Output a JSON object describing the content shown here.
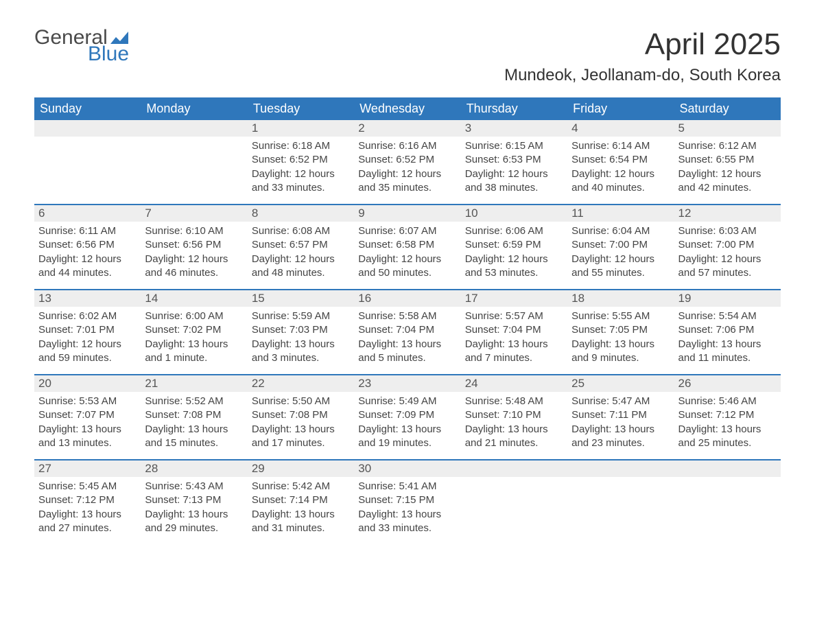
{
  "logo": {
    "word1": "General",
    "word2": "Blue",
    "flag_color": "#2f77bb"
  },
  "title": "April 2025",
  "location": "Mundeok, Jeollanam-do, South Korea",
  "header_bg": "#2f77bb",
  "header_text_color": "#ffffff",
  "daynum_bg": "#eeeeee",
  "week_border_color": "#2f77bb",
  "text_color": "#444444",
  "page_bg": "#ffffff",
  "fonts": {
    "title_size_pt": 33,
    "location_size_pt": 18,
    "dow_size_pt": 14,
    "body_size_pt": 11
  },
  "days_of_week": [
    "Sunday",
    "Monday",
    "Tuesday",
    "Wednesday",
    "Thursday",
    "Friday",
    "Saturday"
  ],
  "weeks": [
    [
      {
        "num": "",
        "sunrise": "",
        "sunset": "",
        "daylight": ""
      },
      {
        "num": "",
        "sunrise": "",
        "sunset": "",
        "daylight": ""
      },
      {
        "num": "1",
        "sunrise": "Sunrise: 6:18 AM",
        "sunset": "Sunset: 6:52 PM",
        "daylight": "Daylight: 12 hours and 33 minutes."
      },
      {
        "num": "2",
        "sunrise": "Sunrise: 6:16 AM",
        "sunset": "Sunset: 6:52 PM",
        "daylight": "Daylight: 12 hours and 35 minutes."
      },
      {
        "num": "3",
        "sunrise": "Sunrise: 6:15 AM",
        "sunset": "Sunset: 6:53 PM",
        "daylight": "Daylight: 12 hours and 38 minutes."
      },
      {
        "num": "4",
        "sunrise": "Sunrise: 6:14 AM",
        "sunset": "Sunset: 6:54 PM",
        "daylight": "Daylight: 12 hours and 40 minutes."
      },
      {
        "num": "5",
        "sunrise": "Sunrise: 6:12 AM",
        "sunset": "Sunset: 6:55 PM",
        "daylight": "Daylight: 12 hours and 42 minutes."
      }
    ],
    [
      {
        "num": "6",
        "sunrise": "Sunrise: 6:11 AM",
        "sunset": "Sunset: 6:56 PM",
        "daylight": "Daylight: 12 hours and 44 minutes."
      },
      {
        "num": "7",
        "sunrise": "Sunrise: 6:10 AM",
        "sunset": "Sunset: 6:56 PM",
        "daylight": "Daylight: 12 hours and 46 minutes."
      },
      {
        "num": "8",
        "sunrise": "Sunrise: 6:08 AM",
        "sunset": "Sunset: 6:57 PM",
        "daylight": "Daylight: 12 hours and 48 minutes."
      },
      {
        "num": "9",
        "sunrise": "Sunrise: 6:07 AM",
        "sunset": "Sunset: 6:58 PM",
        "daylight": "Daylight: 12 hours and 50 minutes."
      },
      {
        "num": "10",
        "sunrise": "Sunrise: 6:06 AM",
        "sunset": "Sunset: 6:59 PM",
        "daylight": "Daylight: 12 hours and 53 minutes."
      },
      {
        "num": "11",
        "sunrise": "Sunrise: 6:04 AM",
        "sunset": "Sunset: 7:00 PM",
        "daylight": "Daylight: 12 hours and 55 minutes."
      },
      {
        "num": "12",
        "sunrise": "Sunrise: 6:03 AM",
        "sunset": "Sunset: 7:00 PM",
        "daylight": "Daylight: 12 hours and 57 minutes."
      }
    ],
    [
      {
        "num": "13",
        "sunrise": "Sunrise: 6:02 AM",
        "sunset": "Sunset: 7:01 PM",
        "daylight": "Daylight: 12 hours and 59 minutes."
      },
      {
        "num": "14",
        "sunrise": "Sunrise: 6:00 AM",
        "sunset": "Sunset: 7:02 PM",
        "daylight": "Daylight: 13 hours and 1 minute."
      },
      {
        "num": "15",
        "sunrise": "Sunrise: 5:59 AM",
        "sunset": "Sunset: 7:03 PM",
        "daylight": "Daylight: 13 hours and 3 minutes."
      },
      {
        "num": "16",
        "sunrise": "Sunrise: 5:58 AM",
        "sunset": "Sunset: 7:04 PM",
        "daylight": "Daylight: 13 hours and 5 minutes."
      },
      {
        "num": "17",
        "sunrise": "Sunrise: 5:57 AM",
        "sunset": "Sunset: 7:04 PM",
        "daylight": "Daylight: 13 hours and 7 minutes."
      },
      {
        "num": "18",
        "sunrise": "Sunrise: 5:55 AM",
        "sunset": "Sunset: 7:05 PM",
        "daylight": "Daylight: 13 hours and 9 minutes."
      },
      {
        "num": "19",
        "sunrise": "Sunrise: 5:54 AM",
        "sunset": "Sunset: 7:06 PM",
        "daylight": "Daylight: 13 hours and 11 minutes."
      }
    ],
    [
      {
        "num": "20",
        "sunrise": "Sunrise: 5:53 AM",
        "sunset": "Sunset: 7:07 PM",
        "daylight": "Daylight: 13 hours and 13 minutes."
      },
      {
        "num": "21",
        "sunrise": "Sunrise: 5:52 AM",
        "sunset": "Sunset: 7:08 PM",
        "daylight": "Daylight: 13 hours and 15 minutes."
      },
      {
        "num": "22",
        "sunrise": "Sunrise: 5:50 AM",
        "sunset": "Sunset: 7:08 PM",
        "daylight": "Daylight: 13 hours and 17 minutes."
      },
      {
        "num": "23",
        "sunrise": "Sunrise: 5:49 AM",
        "sunset": "Sunset: 7:09 PM",
        "daylight": "Daylight: 13 hours and 19 minutes."
      },
      {
        "num": "24",
        "sunrise": "Sunrise: 5:48 AM",
        "sunset": "Sunset: 7:10 PM",
        "daylight": "Daylight: 13 hours and 21 minutes."
      },
      {
        "num": "25",
        "sunrise": "Sunrise: 5:47 AM",
        "sunset": "Sunset: 7:11 PM",
        "daylight": "Daylight: 13 hours and 23 minutes."
      },
      {
        "num": "26",
        "sunrise": "Sunrise: 5:46 AM",
        "sunset": "Sunset: 7:12 PM",
        "daylight": "Daylight: 13 hours and 25 minutes."
      }
    ],
    [
      {
        "num": "27",
        "sunrise": "Sunrise: 5:45 AM",
        "sunset": "Sunset: 7:12 PM",
        "daylight": "Daylight: 13 hours and 27 minutes."
      },
      {
        "num": "28",
        "sunrise": "Sunrise: 5:43 AM",
        "sunset": "Sunset: 7:13 PM",
        "daylight": "Daylight: 13 hours and 29 minutes."
      },
      {
        "num": "29",
        "sunrise": "Sunrise: 5:42 AM",
        "sunset": "Sunset: 7:14 PM",
        "daylight": "Daylight: 13 hours and 31 minutes."
      },
      {
        "num": "30",
        "sunrise": "Sunrise: 5:41 AM",
        "sunset": "Sunset: 7:15 PM",
        "daylight": "Daylight: 13 hours and 33 minutes."
      },
      {
        "num": "",
        "sunrise": "",
        "sunset": "",
        "daylight": ""
      },
      {
        "num": "",
        "sunrise": "",
        "sunset": "",
        "daylight": ""
      },
      {
        "num": "",
        "sunrise": "",
        "sunset": "",
        "daylight": ""
      }
    ]
  ]
}
